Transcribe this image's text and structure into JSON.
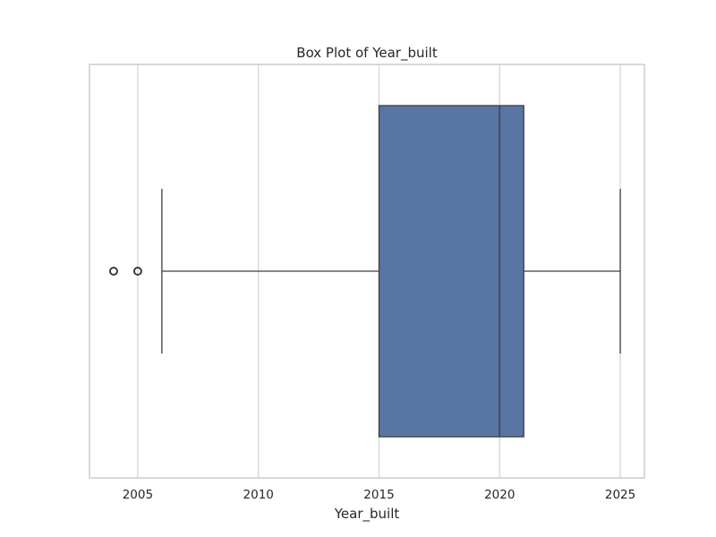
{
  "chart_data": {
    "type": "box",
    "title": "Box Plot of Year_built",
    "xlabel": "Year_built",
    "ylabel": "",
    "orientation": "horizontal",
    "xlim": [
      2003,
      2026
    ],
    "xticks": [
      2005,
      2010,
      2015,
      2020,
      2025
    ],
    "grid": "vertical",
    "legend": "none",
    "series": [
      {
        "whisker_low": 2006,
        "q1": 2015,
        "median": 2020,
        "q3": 2021,
        "whisker_high": 2025,
        "outliers": [
          2004,
          2005
        ]
      }
    ],
    "colors": {
      "box_fill": "#5875a4",
      "line": "#3d3d3d",
      "grid": "#d3d3d3",
      "frame": "#cccccc",
      "outlier_edge": "#3d3d3d"
    }
  }
}
